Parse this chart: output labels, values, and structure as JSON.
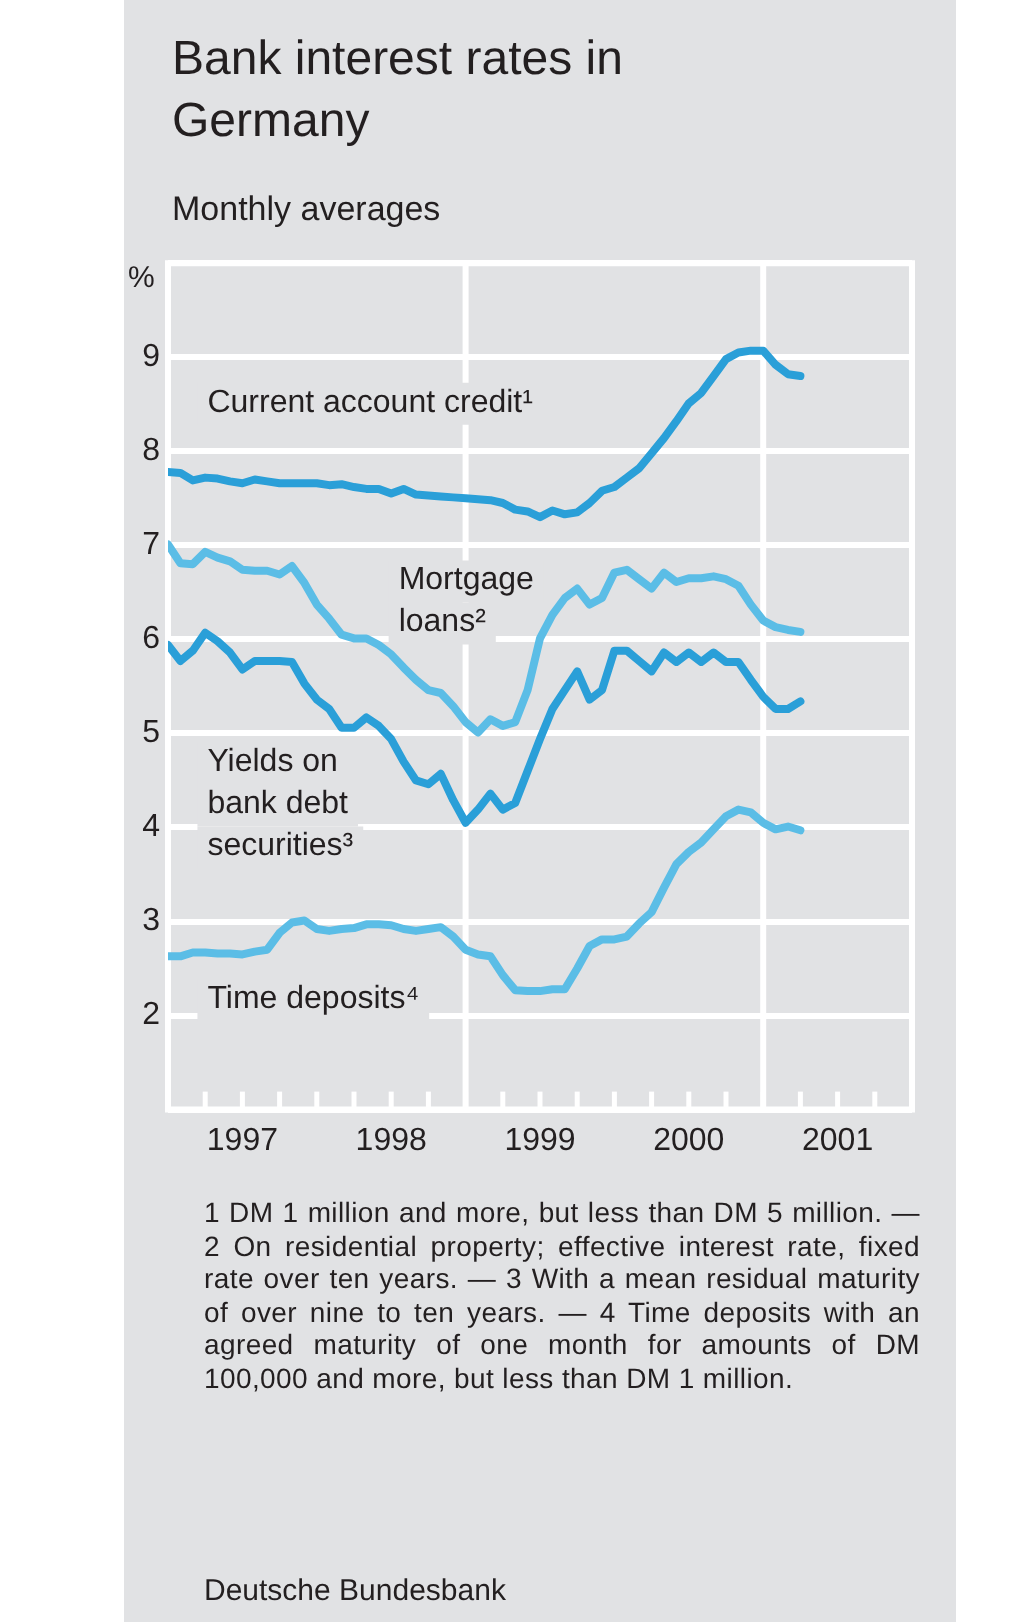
{
  "chart_data": {
    "type": "line",
    "title": "Bank interest rates in Germany",
    "subtitle": "Monthly averages",
    "ylabel": "%",
    "x": [
      "1997-01",
      "1997-02",
      "1997-03",
      "1997-04",
      "1997-05",
      "1997-06",
      "1997-07",
      "1997-08",
      "1997-09",
      "1997-10",
      "1997-11",
      "1997-12",
      "1998-01",
      "1998-02",
      "1998-03",
      "1998-04",
      "1998-05",
      "1998-06",
      "1998-07",
      "1998-08",
      "1998-09",
      "1998-10",
      "1998-11",
      "1998-12",
      "1999-01",
      "1999-02",
      "1999-03",
      "1999-04",
      "1999-05",
      "1999-06",
      "1999-07",
      "1999-08",
      "1999-09",
      "1999-10",
      "1999-11",
      "1999-12",
      "2000-01",
      "2000-02",
      "2000-03",
      "2000-04",
      "2000-05",
      "2000-06",
      "2000-07",
      "2000-08",
      "2000-09",
      "2000-10",
      "2000-11",
      "2000-12",
      "2001-01",
      "2001-02",
      "2001-03",
      "2001-04"
    ],
    "series": [
      {
        "name": "Current account credit¹",
        "color": "#2a9fd8",
        "values": [
          7.78,
          7.77,
          7.69,
          7.72,
          7.71,
          7.68,
          7.66,
          7.7,
          7.68,
          7.66,
          7.66,
          7.66,
          7.66,
          7.64,
          7.65,
          7.62,
          7.6,
          7.6,
          7.55,
          7.6,
          7.54,
          7.53,
          7.52,
          7.51,
          7.5,
          7.49,
          7.48,
          7.45,
          7.38,
          7.36,
          7.3,
          7.37,
          7.33,
          7.35,
          7.45,
          7.58,
          7.62,
          7.72,
          7.82,
          7.98,
          8.14,
          8.32,
          8.51,
          8.62,
          8.8,
          8.98,
          9.05,
          9.07,
          9.07,
          8.92,
          8.82,
          8.8
        ]
      },
      {
        "name": "Mortgage loans²",
        "color": "#5bbde6",
        "values": [
          7.01,
          6.81,
          6.8,
          6.93,
          6.87,
          6.83,
          6.74,
          6.73,
          6.73,
          6.69,
          6.78,
          6.6,
          6.37,
          6.22,
          6.05,
          6.01,
          6.01,
          5.94,
          5.84,
          5.7,
          5.57,
          5.46,
          5.43,
          5.29,
          5.12,
          5.01,
          5.15,
          5.08,
          5.12,
          5.46,
          6.01,
          6.26,
          6.44,
          6.54,
          6.37,
          6.44,
          6.71,
          6.74,
          6.64,
          6.54,
          6.71,
          6.61,
          6.65,
          6.65,
          6.67,
          6.64,
          6.57,
          6.37,
          6.2,
          6.13,
          6.1,
          6.08
        ]
      },
      {
        "name": "Yields on bank debt securities³",
        "color": "#2a9fd8",
        "values": [
          5.94,
          5.77,
          5.88,
          6.07,
          5.98,
          5.86,
          5.68,
          5.77,
          5.77,
          5.77,
          5.76,
          5.53,
          5.36,
          5.26,
          5.06,
          5.06,
          5.17,
          5.08,
          4.94,
          4.7,
          4.5,
          4.46,
          4.57,
          4.29,
          4.05,
          4.19,
          4.36,
          4.19,
          4.26,
          4.6,
          4.94,
          5.26,
          5.46,
          5.66,
          5.36,
          5.46,
          5.88,
          5.88,
          5.77,
          5.66,
          5.86,
          5.76,
          5.86,
          5.76,
          5.86,
          5.76,
          5.76,
          5.57,
          5.39,
          5.26,
          5.26,
          5.34
        ]
      },
      {
        "name": "Time deposits⁴",
        "color": "#5bbde6",
        "values": [
          2.63,
          2.63,
          2.67,
          2.67,
          2.66,
          2.66,
          2.65,
          2.68,
          2.7,
          2.88,
          2.99,
          3.01,
          2.92,
          2.9,
          2.92,
          2.93,
          2.97,
          2.97,
          2.96,
          2.92,
          2.9,
          2.92,
          2.94,
          2.84,
          2.7,
          2.65,
          2.63,
          2.43,
          2.27,
          2.26,
          2.26,
          2.28,
          2.28,
          2.5,
          2.74,
          2.81,
          2.81,
          2.84,
          2.98,
          3.1,
          3.36,
          3.61,
          3.74,
          3.84,
          3.98,
          4.12,
          4.19,
          4.16,
          4.05,
          3.98,
          4.01,
          3.97
        ]
      }
    ],
    "xlim": [
      "1997",
      "2002"
    ],
    "xticks": [
      {
        "value": "1997",
        "label": null
      },
      {
        "value": "1997-04",
        "label": null
      },
      {
        "value": "1997-07",
        "label": "1997"
      },
      {
        "value": "1997-10",
        "label": null
      },
      {
        "value": "1998",
        "label": null
      },
      {
        "value": "1998-04",
        "label": null
      },
      {
        "value": "1998-07",
        "label": "1998"
      },
      {
        "value": "1998-10",
        "label": null
      },
      {
        "value": "1999",
        "label": null
      },
      {
        "value": "1999-04",
        "label": null
      },
      {
        "value": "1999-07",
        "label": "1999"
      },
      {
        "value": "1999-10",
        "label": null
      },
      {
        "value": "2000",
        "label": null
      },
      {
        "value": "2000-04",
        "label": null
      },
      {
        "value": "2000-07",
        "label": "2000"
      },
      {
        "value": "2000-10",
        "label": null
      },
      {
        "value": "2001",
        "label": null
      },
      {
        "value": "2001-04",
        "label": null
      },
      {
        "value": "2001-07",
        "label": "2001"
      },
      {
        "value": "2001-10",
        "label": null
      },
      {
        "value": "2002",
        "label": null
      }
    ],
    "ylim": [
      1,
      10
    ],
    "yticks": [
      {
        "value": 1,
        "label": null
      },
      2,
      3,
      4,
      5,
      6,
      7,
      8,
      9,
      {
        "value": 10,
        "label": null
      }
    ],
    "grid": "y",
    "legend": false,
    "marker": "none",
    "line_style": "solid",
    "ref_lines": [
      {
        "axis": "x",
        "value": "1999",
        "color": "#ffffff"
      },
      {
        "axis": "x",
        "value": "2001",
        "color": "#ffffff"
      }
    ],
    "annotations": [
      "1 DM 1 million and more, but less than DM 5 million. — 2 On residential property; effective interest rate, fixed rate over ten years. — 3 With a mean residual maturity of over nine to ten years. — 4 Time deposits with an agreed maturity of one month for amounts of DM 100,000 and more, but less than DM 1 million.",
      "Deutsche Bundesbank"
    ]
  }
}
